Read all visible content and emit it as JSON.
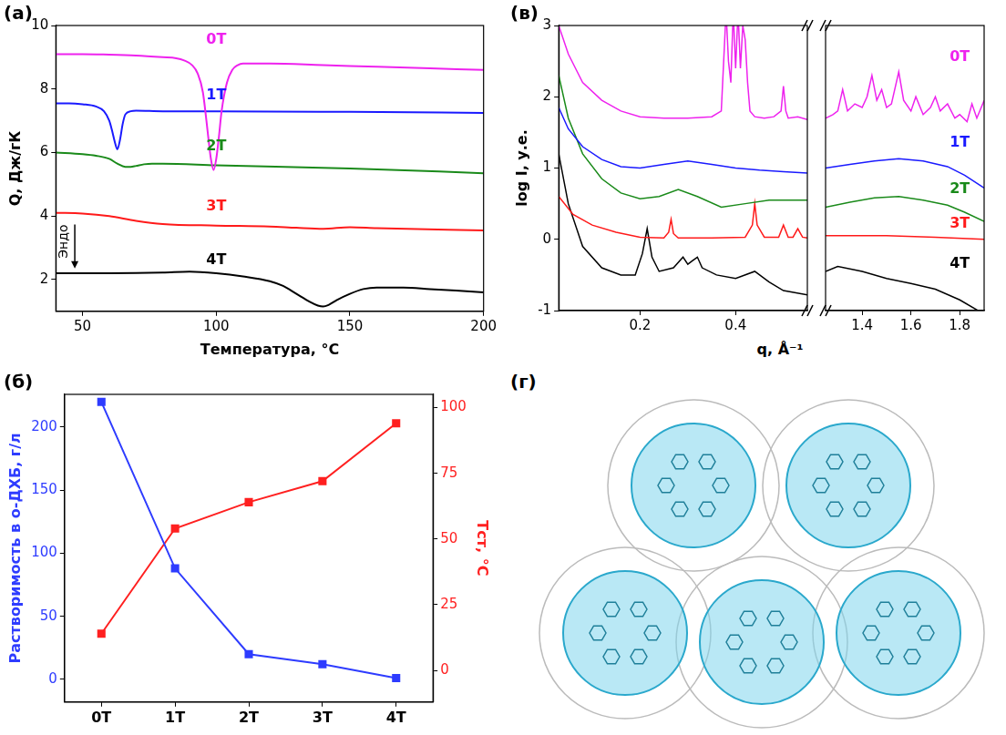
{
  "chart_data": [
    {
      "type": "line",
      "panel_label": "(а)",
      "x_label": "Температура, °C",
      "y_label": "Q, Дж/гК",
      "xlim": [
        40,
        200
      ],
      "xticks": [
        50,
        100,
        150,
        200
      ],
      "ylim": [
        1,
        10
      ],
      "yticks": [
        2,
        4,
        6,
        8,
        10
      ],
      "grid": false,
      "marker": "none",
      "line_style": "solid",
      "annotations": [
        {
          "text": "Эндо",
          "x": 43,
          "y": 3.2,
          "arrow": "down"
        }
      ],
      "series": [
        {
          "name": "0T",
          "color": "#ee22ee",
          "label_at": [
            100,
            9.55
          ],
          "x": [
            40,
            50,
            60,
            70,
            80,
            85,
            88,
            91,
            93,
            95,
            97,
            98,
            99,
            100,
            101,
            102,
            104,
            106,
            108,
            110,
            115,
            120,
            140,
            160,
            180,
            200
          ],
          "values": [
            9.1,
            9.1,
            9.08,
            9.05,
            9.0,
            8.97,
            8.9,
            8.75,
            8.5,
            7.9,
            6.5,
            5.8,
            5.45,
            5.8,
            6.5,
            7.3,
            8.2,
            8.6,
            8.75,
            8.8,
            8.8,
            8.8,
            8.75,
            8.7,
            8.65,
            8.6
          ]
        },
        {
          "name": "1T",
          "color": "#1a1aff",
          "label_at": [
            100,
            7.8
          ],
          "x": [
            40,
            45,
            50,
            55,
            58,
            60,
            61,
            62,
            63,
            64,
            65,
            66,
            68,
            70,
            80,
            100,
            150,
            200
          ],
          "values": [
            7.55,
            7.55,
            7.52,
            7.45,
            7.3,
            7.0,
            6.7,
            6.35,
            6.1,
            6.4,
            6.9,
            7.2,
            7.3,
            7.32,
            7.3,
            7.3,
            7.28,
            7.25
          ]
        },
        {
          "name": "2T",
          "color": "#1a8a1a",
          "label_at": [
            100,
            6.2
          ],
          "x": [
            40,
            50,
            55,
            60,
            63,
            66,
            68,
            70,
            73,
            76,
            80,
            100,
            150,
            200
          ],
          "values": [
            6.0,
            5.95,
            5.9,
            5.8,
            5.65,
            5.55,
            5.55,
            5.58,
            5.63,
            5.65,
            5.65,
            5.6,
            5.5,
            5.35
          ]
        },
        {
          "name": "3T",
          "color": "#ff1a1a",
          "label_at": [
            100,
            4.3
          ],
          "x": [
            40,
            50,
            60,
            70,
            80,
            100,
            120,
            130,
            140,
            150,
            160,
            200
          ],
          "values": [
            4.1,
            4.08,
            4.0,
            3.85,
            3.75,
            3.7,
            3.67,
            3.63,
            3.6,
            3.65,
            3.62,
            3.55
          ]
        },
        {
          "name": "4T",
          "color": "#000000",
          "label_at": [
            100,
            2.6
          ],
          "x": [
            40,
            60,
            80,
            90,
            100,
            110,
            120,
            125,
            130,
            135,
            138,
            140,
            142,
            145,
            150,
            155,
            160,
            170,
            180,
            200
          ],
          "values": [
            2.2,
            2.2,
            2.22,
            2.25,
            2.2,
            2.1,
            1.95,
            1.8,
            1.55,
            1.3,
            1.18,
            1.15,
            1.2,
            1.35,
            1.55,
            1.7,
            1.75,
            1.75,
            1.7,
            1.6
          ]
        }
      ]
    },
    {
      "type": "line",
      "panel_label": "(в)",
      "x_label": "q, Å⁻¹",
      "y_label": "log I, у.е.",
      "ylim": [
        -1,
        3
      ],
      "yticks": [
        -1,
        0,
        1,
        2,
        3
      ],
      "x_segments": [
        {
          "xlim": [
            0.03,
            0.55
          ],
          "xticks": [
            0.2,
            0.4
          ]
        },
        {
          "xlim": [
            1.25,
            1.9
          ],
          "xticks": [
            1.4,
            1.6,
            1.8
          ]
        }
      ],
      "grid": false,
      "marker": "none",
      "line_style": "solid",
      "series": [
        {
          "name": "0T",
          "color": "#ee22ee",
          "label_at": [
            1.8,
            2.55
          ],
          "segments": [
            {
              "x": [
                0.03,
                0.05,
                0.08,
                0.12,
                0.16,
                0.2,
                0.25,
                0.3,
                0.35,
                0.37,
                0.375,
                0.38,
                0.385,
                0.39,
                0.395,
                0.4,
                0.405,
                0.41,
                0.415,
                0.42,
                0.425,
                0.43,
                0.44,
                0.46,
                0.48,
                0.495,
                0.5,
                0.505,
                0.51,
                0.53,
                0.55
              ],
              "values": [
                3.0,
                2.6,
                2.2,
                1.95,
                1.8,
                1.72,
                1.7,
                1.7,
                1.72,
                1.8,
                2.5,
                3.2,
                2.5,
                2.2,
                3.2,
                2.4,
                3.2,
                2.4,
                3.0,
                2.8,
                2.2,
                1.8,
                1.72,
                1.7,
                1.72,
                1.8,
                2.15,
                1.8,
                1.7,
                1.72,
                1.68
              ]
            },
            {
              "x": [
                1.25,
                1.28,
                1.3,
                1.32,
                1.34,
                1.37,
                1.4,
                1.42,
                1.44,
                1.46,
                1.48,
                1.5,
                1.52,
                1.55,
                1.57,
                1.6,
                1.62,
                1.65,
                1.68,
                1.7,
                1.72,
                1.75,
                1.78,
                1.8,
                1.83,
                1.85,
                1.87,
                1.9
              ],
              "values": [
                1.7,
                1.75,
                1.8,
                2.1,
                1.8,
                1.9,
                1.85,
                2.0,
                2.3,
                1.95,
                2.1,
                1.85,
                1.9,
                2.35,
                1.95,
                1.8,
                2.0,
                1.75,
                1.85,
                2.0,
                1.8,
                1.9,
                1.7,
                1.75,
                1.65,
                1.9,
                1.7,
                1.95
              ]
            }
          ]
        },
        {
          "name": "1T",
          "color": "#1a1aff",
          "label_at": [
            1.8,
            1.35
          ],
          "segments": [
            {
              "x": [
                0.03,
                0.05,
                0.08,
                0.12,
                0.16,
                0.2,
                0.25,
                0.3,
                0.35,
                0.4,
                0.45,
                0.5,
                0.55
              ],
              "values": [
                1.85,
                1.55,
                1.3,
                1.12,
                1.02,
                1.0,
                1.05,
                1.1,
                1.05,
                1.0,
                0.97,
                0.95,
                0.93
              ]
            },
            {
              "x": [
                1.25,
                1.35,
                1.45,
                1.55,
                1.65,
                1.75,
                1.82,
                1.9
              ],
              "values": [
                1.0,
                1.05,
                1.1,
                1.13,
                1.1,
                1.02,
                0.9,
                0.72
              ]
            }
          ]
        },
        {
          "name": "2T",
          "color": "#1a8a1a",
          "label_at": [
            1.8,
            0.7
          ],
          "segments": [
            {
              "x": [
                0.03,
                0.05,
                0.08,
                0.12,
                0.16,
                0.2,
                0.24,
                0.28,
                0.32,
                0.37,
                0.42,
                0.47,
                0.55
              ],
              "values": [
                2.3,
                1.7,
                1.2,
                0.85,
                0.65,
                0.57,
                0.6,
                0.7,
                0.6,
                0.45,
                0.5,
                0.55,
                0.55
              ]
            },
            {
              "x": [
                1.25,
                1.35,
                1.45,
                1.55,
                1.65,
                1.75,
                1.82,
                1.9
              ],
              "values": [
                0.45,
                0.52,
                0.58,
                0.6,
                0.55,
                0.48,
                0.38,
                0.25
              ]
            }
          ]
        },
        {
          "name": "3T",
          "color": "#ff1a1a",
          "label_at": [
            1.8,
            0.22
          ],
          "segments": [
            {
              "x": [
                0.03,
                0.06,
                0.1,
                0.15,
                0.2,
                0.25,
                0.26,
                0.265,
                0.27,
                0.28,
                0.35,
                0.42,
                0.435,
                0.44,
                0.445,
                0.46,
                0.49,
                0.5,
                0.51,
                0.52,
                0.53,
                0.54,
                0.55
              ],
              "values": [
                0.6,
                0.35,
                0.2,
                0.1,
                0.03,
                0.02,
                0.1,
                0.28,
                0.08,
                0.02,
                0.02,
                0.03,
                0.2,
                0.5,
                0.2,
                0.03,
                0.03,
                0.2,
                0.03,
                0.03,
                0.15,
                0.03,
                0.02
              ]
            },
            {
              "x": [
                1.25,
                1.5,
                1.7,
                1.9
              ],
              "values": [
                0.05,
                0.05,
                0.03,
                0.0
              ]
            }
          ]
        },
        {
          "name": "4T",
          "color": "#000000",
          "label_at": [
            1.8,
            -0.35
          ],
          "segments": [
            {
              "x": [
                0.03,
                0.05,
                0.08,
                0.12,
                0.16,
                0.19,
                0.205,
                0.215,
                0.225,
                0.24,
                0.27,
                0.29,
                0.3,
                0.31,
                0.32,
                0.33,
                0.36,
                0.4,
                0.44,
                0.47,
                0.5,
                0.55
              ],
              "values": [
                1.2,
                0.5,
                -0.1,
                -0.4,
                -0.5,
                -0.5,
                -0.2,
                0.15,
                -0.25,
                -0.45,
                -0.4,
                -0.25,
                -0.35,
                -0.3,
                -0.25,
                -0.4,
                -0.5,
                -0.55,
                -0.45,
                -0.6,
                -0.72,
                -0.78
              ]
            },
            {
              "x": [
                1.25,
                1.3,
                1.4,
                1.5,
                1.6,
                1.7,
                1.8,
                1.9
              ],
              "values": [
                -0.45,
                -0.38,
                -0.45,
                -0.55,
                -0.62,
                -0.7,
                -0.85,
                -1.05
              ]
            }
          ]
        }
      ]
    },
    {
      "type": "line",
      "panel_label": "(б)",
      "y_label": "Растворимость в о-ДХБ, г/л",
      "y2_label": "Tст, °C",
      "categories": [
        "0T",
        "1T",
        "2T",
        "3T",
        "4T"
      ],
      "ylim": [
        -18,
        226
      ],
      "yticks": [
        0,
        50,
        100,
        150,
        200
      ],
      "y2lim": [
        -12,
        105
      ],
      "y2ticks": [
        0,
        25,
        50,
        75,
        100
      ],
      "grid": false,
      "marker": "square",
      "line_style": "solid",
      "series": [
        {
          "color": "#2e3cff",
          "values": [
            220,
            88,
            20,
            12,
            1
          ]
        },
        {
          "color": "#ff2020",
          "axis": "y2",
          "values": [
            14,
            54,
            64,
            72,
            94
          ]
        }
      ]
    },
    {
      "type": "image",
      "panel_label": "(г)"
    }
  ]
}
